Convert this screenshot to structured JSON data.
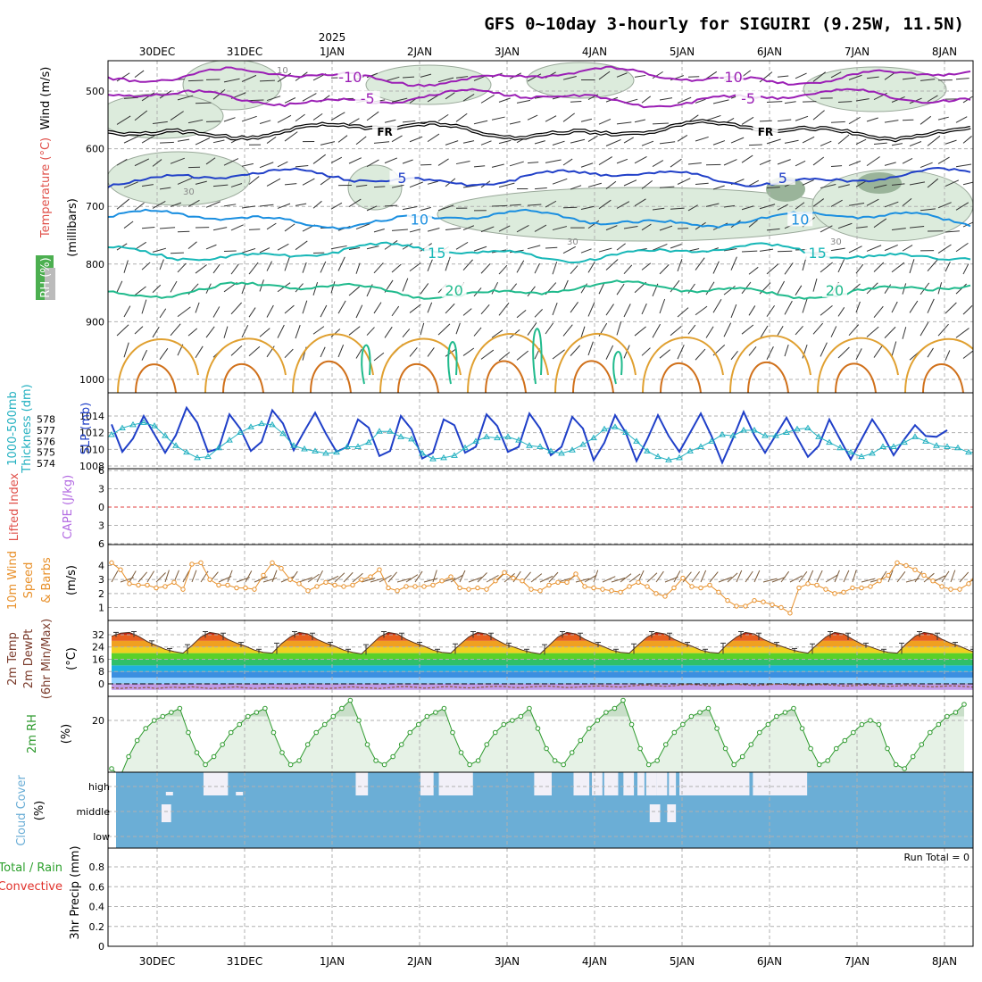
{
  "title": "GFS 0~10day 3-hourly for SIGUIRI (9.25W, 11.5N)",
  "colors": {
    "wind_label": "#000000",
    "temp_label": "#e0504a",
    "rh_label": "#33a02c",
    "thick_line": "#22b0c0",
    "slp_line": "#1f3fc8",
    "li_label": "#e0504a",
    "cape_label": "#b36ae2",
    "wind10": "#e8902a",
    "rh2m": "#2e9a2e",
    "cloud": "#6baed6",
    "precip_total": "#2ca02c",
    "precip_conv": "#e0302a"
  },
  "dates": {
    "top": [
      "30DEC",
      "31DEC",
      "1JAN",
      "2JAN",
      "3JAN",
      "4JAN",
      "5JAN",
      "6JAN",
      "7JAN",
      "8JAN"
    ],
    "bottom": [
      "30DEC",
      "31DEC",
      "1JAN",
      "2JAN",
      "3JAN",
      "4JAN",
      "5JAN",
      "6JAN",
      "7JAN",
      "8JAN"
    ],
    "year": "2025"
  },
  "chart_data": [
    {
      "type": "contour",
      "panel": "upper-air",
      "ylabel_parts": [
        "Wind (m/s)",
        "Temperature (°C)",
        "RH (%)",
        "(millibars)"
      ],
      "y_ticks": [
        500,
        600,
        700,
        800,
        900,
        1000
      ],
      "temperature_contours": [
        {
          "label": "-10",
          "pressure_mb": 475,
          "color": "#9b1fb5"
        },
        {
          "label": "-5",
          "pressure_mb": 512,
          "color": "#9b1fb5"
        },
        {
          "label": "FR",
          "pressure_mb": 568,
          "color": "#000000"
        },
        {
          "label": "5",
          "pressure_mb": 650,
          "color": "#2140c8"
        },
        {
          "label": "10",
          "pressure_mb": 722,
          "color": "#1b8fe0"
        },
        {
          "label": "15",
          "pressure_mb": 780,
          "color": "#17b7b7"
        },
        {
          "label": "20",
          "pressure_mb": 845,
          "color": "#1fba8c"
        }
      ],
      "rh_contour_labels": [
        "10",
        "30"
      ]
    },
    {
      "type": "line",
      "panel": "thickness-slp",
      "ylabel_left": "1000-500mb Thickness (dm)",
      "ylabel_right": "SLP (mb)",
      "y_ticks_left": [
        574,
        575,
        576,
        577,
        578
      ],
      "y_ticks_right": [
        1008,
        1010,
        1012,
        1014
      ],
      "series": [
        {
          "name": "SLP (mb)",
          "values": [
            1013.0,
            1009.7,
            1011.3,
            1014.0,
            1011.8,
            1009.6,
            1011.7,
            1015.0,
            1013.2,
            1009.7,
            1010.1,
            1014.2,
            1012.5,
            1009.8,
            1010.9,
            1014.7,
            1013.1,
            1009.9,
            1012.2,
            1014.4,
            1011.9,
            1009.7,
            1010.3,
            1013.6,
            1012.6,
            1009.2,
            1009.8,
            1014.0,
            1012.4,
            1008.9,
            1009.6,
            1013.6,
            1012.9,
            1009.6,
            1010.3,
            1014.2,
            1012.8,
            1009.7,
            1010.3,
            1014.3,
            1012.5,
            1009.3,
            1010.3,
            1013.9,
            1012.5,
            1008.7,
            1010.8,
            1014.1,
            1012.0,
            1008.6,
            1011.2,
            1014.1,
            1011.6,
            1009.7,
            1012.0,
            1014.3,
            1011.6,
            1008.4,
            1011.3,
            1014.5,
            1011.7,
            1009.6,
            1011.7,
            1013.8,
            1011.4,
            1009.1,
            1010.4,
            1013.6,
            1011.2,
            1008.8,
            1011.2,
            1013.6,
            1011.7,
            1009.3,
            1011.2,
            1012.9,
            1011.6,
            1011.5,
            1012.3
          ]
        },
        {
          "name": "1000-500mb Thickness (dm)",
          "values": [
            576.6,
            577.2,
            577.5,
            577.7,
            577.4,
            576.5,
            575.6,
            575.0,
            574.5,
            574.6,
            575.4,
            576.1,
            576.8,
            577.3,
            577.6,
            577.5,
            576.7,
            575.6,
            575.3,
            575.1,
            574.9,
            575.0,
            575.5,
            575.5,
            575.9,
            576.9,
            576.9,
            576.4,
            576.2,
            574.9,
            574.4,
            574.5,
            574.7,
            575.4,
            576.0,
            576.4,
            576.3,
            576.4,
            576.1,
            575.6,
            575.5,
            575.1,
            574.9,
            575.2,
            575.7,
            576.3,
            577.1,
            577.3,
            576.8,
            576.0,
            575.1,
            574.6,
            574.3,
            574.5,
            575.1,
            575.5,
            576.0,
            576.6,
            576.5,
            577.0,
            577.0,
            576.5,
            576.5,
            576.8,
            577.1,
            577.2,
            576.4,
            575.9,
            575.4,
            575.0,
            574.6,
            574.9,
            575.5,
            575.5,
            575.9,
            576.4,
            576.0,
            575.6,
            575.5,
            575.4,
            575.0,
            575.0,
            575.1,
            575.3,
            575.4,
            575.0,
            575.0,
            575.4
          ]
        }
      ]
    },
    {
      "type": "line",
      "panel": "stability",
      "ylabel_left": "Lifted Index",
      "ylabel_right": "CAPE (J/kg)",
      "y_ticks": [
        6,
        3,
        0,
        -3,
        -6
      ],
      "series": [
        {
          "name": "Lifted Index",
          "values": []
        },
        {
          "name": "CAPE (J/kg)",
          "values": []
        }
      ]
    },
    {
      "type": "line",
      "panel": "wind10",
      "ylabel_parts": [
        "10m Wind",
        "Speed",
        "& Barbs",
        "(m/s)"
      ],
      "y_ticks": [
        1,
        2,
        3,
        4
      ],
      "series": [
        {
          "name": "10m Wind Speed (m/s)",
          "values": [
            4.2,
            3.7,
            2.7,
            2.6,
            2.6,
            2.4,
            2.5,
            2.8,
            2.3,
            4.1,
            4.2,
            3.0,
            2.6,
            2.6,
            2.4,
            2.4,
            2.3,
            3.3,
            4.2,
            3.8,
            3.0,
            2.7,
            2.2,
            2.5,
            2.8,
            2.6,
            2.5,
            2.6,
            3.0,
            3.2,
            3.7,
            2.4,
            2.2,
            2.5,
            2.5,
            2.5,
            2.6,
            2.9,
            3.2,
            2.4,
            2.3,
            2.4,
            2.3,
            2.9,
            3.5,
            3.1,
            2.9,
            2.3,
            2.2,
            2.6,
            2.8,
            2.8,
            3.4,
            2.5,
            2.4,
            2.3,
            2.2,
            2.1,
            2.5,
            2.8,
            2.5,
            2.0,
            1.8,
            2.4,
            3.1,
            2.5,
            2.4,
            2.6,
            2.1,
            1.5,
            1.1,
            1.1,
            1.5,
            1.4,
            1.2,
            1.0,
            0.6,
            2.4,
            2.7,
            2.6,
            2.3,
            2.0,
            2.1,
            2.4,
            2.4,
            2.5,
            2.9,
            3.3,
            4.2,
            4.0,
            3.7,
            3.3,
            2.9,
            2.5,
            2.3,
            2.3,
            2.7,
            3.5
          ]
        }
      ]
    },
    {
      "type": "area",
      "panel": "temperature",
      "ylabel_parts": [
        "2m Temp",
        "2m DewPt",
        "(6hr Min/Max)",
        "(°C)"
      ],
      "y_ticks": [
        0,
        8,
        16,
        24,
        32
      ],
      "series": [
        {
          "name": "2m Temp (°C)",
          "values": [
            31.0,
            33.0,
            33.5,
            31.0,
            27.5,
            25.0,
            22.5,
            21.0,
            20.0,
            25.0,
            30.5,
            33.5,
            32.5,
            29.0,
            26.5,
            24.5,
            22.0,
            20.5,
            20.0,
            26.0,
            30.5,
            33.5,
            32.5,
            29.0,
            26.5,
            24.5,
            22.0,
            20.5,
            19.5,
            25.0,
            30.5,
            33.5,
            32.5,
            29.0,
            26.5,
            24.5,
            22.0,
            20.5,
            20.0,
            25.5,
            30.5,
            33.5,
            32.5,
            29.0,
            26.0,
            24.0,
            22.0,
            20.5,
            19.5,
            25.0,
            30.5,
            33.5,
            32.5,
            29.0,
            26.5,
            24.5,
            22.0,
            20.5,
            20.0,
            25.5,
            30.5,
            33.5,
            32.5,
            29.0,
            26.5,
            24.5,
            22.0,
            20.5,
            20.0,
            26.0,
            30.5,
            33.5,
            32.5,
            29.0,
            26.5,
            24.5,
            22.5,
            21.0,
            20.0,
            25.5,
            30.5,
            33.5,
            32.5,
            29.0,
            26.0,
            24.0,
            22.0,
            20.5,
            20.0,
            26.0,
            31.0,
            33.5,
            32.5,
            29.0,
            26.5,
            24.5,
            22.0,
            20.0
          ]
        },
        {
          "name": "2m DewPt (°C)",
          "values": [
            -2.5,
            -3.0,
            -2.5,
            -2.8,
            -2.3,
            -3.0,
            -2.5,
            -2.2,
            -2.6,
            -2.0,
            -2.5,
            -3.0,
            -2.8,
            -2.4,
            -2.0,
            -2.6,
            -3.0,
            -2.7,
            -2.4,
            -2.8,
            -3.0,
            -2.6,
            -2.2,
            -2.5,
            -3.0,
            -2.8,
            -2.3,
            -2.0,
            -2.5,
            -2.7,
            -3.0,
            -2.5,
            -2.0,
            -1.8,
            -2.2,
            -2.8,
            -2.5,
            -2.0,
            -1.8,
            -2.3,
            -2.6,
            -2.4,
            -2.0,
            -1.6,
            -1.8,
            -2.3,
            -2.5,
            -2.0,
            -1.7,
            -1.5,
            -2.0,
            -2.4,
            -2.2,
            -1.8,
            -1.5,
            -1.4,
            -1.8,
            -2.1,
            -1.5,
            -1.0,
            -0.8,
            -1.2,
            -1.6,
            -1.2,
            -0.6,
            -0.4,
            -0.8,
            -1.2,
            -1.0,
            -0.5,
            -0.3,
            -0.7,
            -1.1,
            -0.8,
            -0.4,
            -0.3,
            -0.6,
            -1.0,
            -0.9,
            -0.5,
            -0.6,
            -1.0,
            -1.4,
            -1.2,
            -0.8,
            -0.7,
            -1.2,
            -1.6,
            -1.4,
            -1.0,
            -1.2,
            -1.6,
            -1.9,
            -1.6,
            -1.3,
            -1.5,
            -1.9,
            -2.2
          ]
        }
      ]
    },
    {
      "type": "line",
      "panel": "rh2m",
      "ylabel_parts": [
        "2m RH",
        "(%)"
      ],
      "y_ticks": [
        20
      ],
      "series": [
        {
          "name": "2m RH (%)",
          "values": [
            8,
            6,
            11,
            15,
            18,
            20,
            21,
            22,
            23,
            17,
            12,
            9,
            11,
            14,
            17,
            19,
            21,
            22,
            23,
            17,
            12,
            9,
            10,
            14,
            17,
            19,
            21,
            23,
            25,
            20,
            14,
            10,
            9,
            11,
            14,
            17,
            19,
            21,
            22,
            23,
            17,
            12,
            9,
            10,
            14,
            17,
            19,
            20,
            21,
            23,
            18,
            13,
            10,
            9,
            12,
            15,
            18,
            20,
            22,
            23,
            25,
            19,
            13,
            9,
            10,
            14,
            17,
            19,
            21,
            22,
            23,
            18,
            13,
            9,
            11,
            14,
            17,
            19,
            21,
            22,
            23,
            18,
            13,
            9,
            10,
            13,
            15,
            17,
            19,
            20,
            19,
            13,
            9,
            8,
            11,
            14,
            17,
            19,
            21,
            22,
            24
          ]
        }
      ]
    },
    {
      "type": "heatmap",
      "panel": "cloud",
      "ylabel_parts": [
        "Cloud Cover",
        "(%)"
      ],
      "rows": [
        "high",
        "middle",
        "low"
      ],
      "clear_high_spans_days": [
        [
          0.53,
          0.81
        ],
        [
          2.27,
          2.41
        ],
        [
          3.01,
          3.16
        ],
        [
          3.22,
          3.61
        ],
        [
          4.31,
          4.51
        ],
        [
          4.76,
          4.94
        ],
        [
          4.97,
          5.09
        ],
        [
          5.11,
          5.27
        ],
        [
          5.33,
          5.45
        ],
        [
          5.49,
          5.57
        ],
        [
          5.59,
          5.71
        ],
        [
          5.71,
          5.83
        ],
        [
          5.85,
          5.93
        ],
        [
          5.97,
          6.77
        ],
        [
          6.81,
          7.43
        ]
      ],
      "clear_middle_spans_days": [
        [
          0.05,
          0.16
        ],
        [
          5.63,
          5.75
        ],
        [
          5.83,
          5.93
        ]
      ]
    },
    {
      "type": "bar",
      "panel": "precip",
      "ylabel_parts": [
        "Total / Rain",
        "Convective",
        "3hr Precip (mm)"
      ],
      "y_ticks": [
        0,
        0.2,
        0.4,
        0.6,
        0.8
      ],
      "annotation": "Run Total = 0",
      "series": [
        {
          "name": "Total / Rain",
          "values": []
        },
        {
          "name": "Convective",
          "values": []
        }
      ]
    }
  ]
}
